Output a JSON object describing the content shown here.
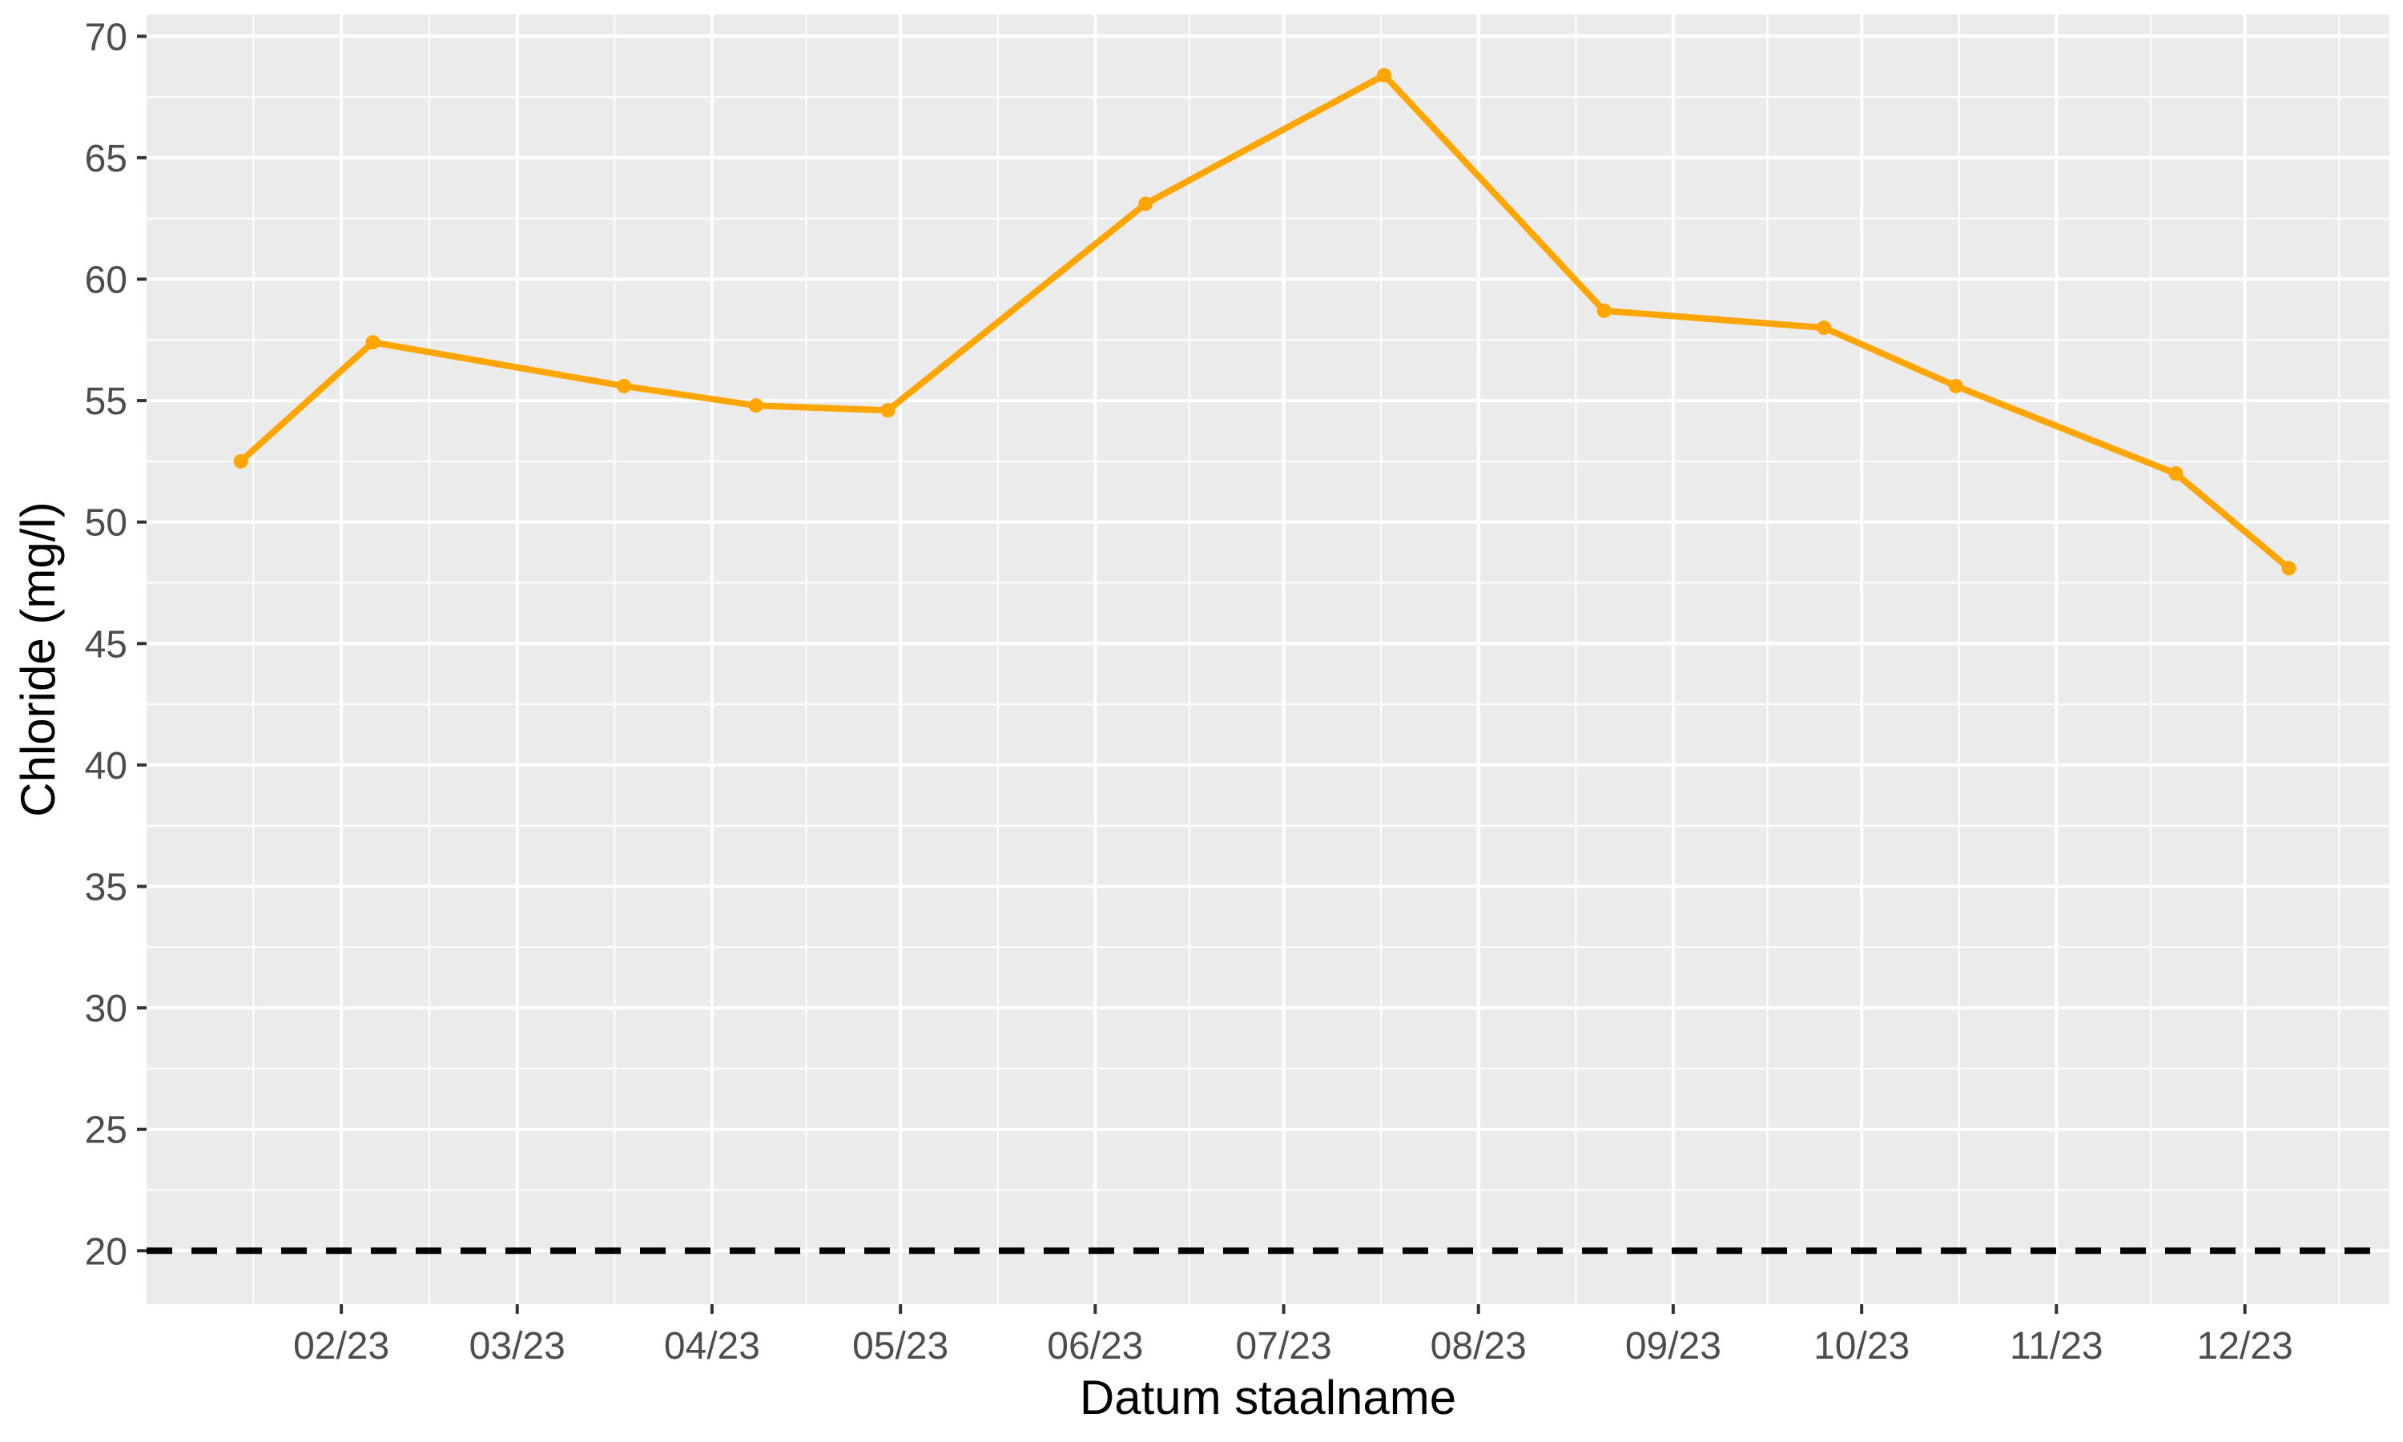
{
  "chart_data": {
    "type": "line",
    "xlabel": "Datum staalname",
    "ylabel": "Chloride (mg/l)",
    "xlim": [
      "2023-01-01",
      "2023-12-24"
    ],
    "ylim": [
      17.8,
      70.9
    ],
    "x_ticks": [
      {
        "date": "2023-02-01",
        "label": "02/23"
      },
      {
        "date": "2023-03-01",
        "label": "03/23"
      },
      {
        "date": "2023-04-01",
        "label": "04/23"
      },
      {
        "date": "2023-05-01",
        "label": "05/23"
      },
      {
        "date": "2023-06-01",
        "label": "06/23"
      },
      {
        "date": "2023-07-01",
        "label": "07/23"
      },
      {
        "date": "2023-08-01",
        "label": "08/23"
      },
      {
        "date": "2023-09-01",
        "label": "09/23"
      },
      {
        "date": "2023-10-01",
        "label": "10/23"
      },
      {
        "date": "2023-11-01",
        "label": "11/23"
      },
      {
        "date": "2023-12-01",
        "label": "12/23"
      }
    ],
    "y_ticks": [
      20,
      25,
      30,
      35,
      40,
      45,
      50,
      55,
      60,
      65,
      70
    ],
    "grid": true,
    "series": [
      {
        "color": "#FFA500",
        "x": [
          "2023-01-16",
          "2023-02-06",
          "2023-03-18",
          "2023-04-08",
          "2023-04-29",
          "2023-06-09",
          "2023-07-17",
          "2023-08-21",
          "2023-09-25",
          "2023-10-16",
          "2023-11-20",
          "2023-12-08"
        ],
        "values": [
          52.5,
          57.4,
          55.6,
          54.8,
          54.6,
          63.1,
          68.4,
          58.7,
          58.0,
          55.6,
          52.0,
          48.1
        ]
      }
    ],
    "reference_line": {
      "y": 20,
      "style": "dashed",
      "color": "#000000"
    }
  }
}
